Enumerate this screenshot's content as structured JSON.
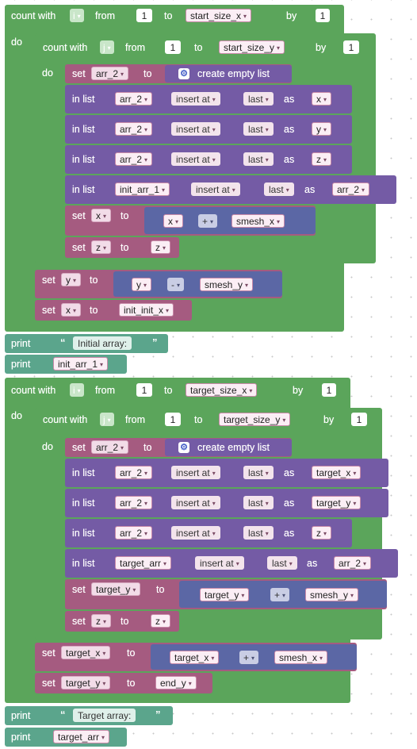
{
  "labels": {
    "count_with": "count with",
    "from": "from",
    "to": "to",
    "by": "by",
    "do": "do",
    "set": "set",
    "in_list": "in list",
    "as": "as",
    "print": "print",
    "create_empty_list": "create empty list",
    "open_quote": "“",
    "close_quote": "”",
    "caret": "▾"
  },
  "loop1": {
    "var": "i",
    "from": "1",
    "to": "start_size_x",
    "by": "1"
  },
  "loop2": {
    "var": "j",
    "from": "1",
    "to": "start_size_y",
    "by": "1"
  },
  "inner1": [
    {
      "kind": "set_empty",
      "var": "arr_2"
    },
    {
      "kind": "insert",
      "list": "arr_2",
      "mode": "insert at",
      "where": "last",
      "value": "x"
    },
    {
      "kind": "insert",
      "list": "arr_2",
      "mode": "insert at",
      "where": "last",
      "value": "y"
    },
    {
      "kind": "insert",
      "list": "arr_2",
      "mode": "insert at",
      "where": "last",
      "value": "z"
    },
    {
      "kind": "insert",
      "list": "init_arr_1",
      "mode": "insert at",
      "where": "last",
      "value": "arr_2"
    },
    {
      "kind": "set_math",
      "var": "x",
      "left": "x",
      "op": "+",
      "right": "smesh_x"
    },
    {
      "kind": "set_var",
      "var": "z",
      "value": "z"
    }
  ],
  "after_loop2": [
    {
      "kind": "set_math",
      "var": "y",
      "left": "y",
      "op": "-",
      "right": "smesh_y"
    },
    {
      "kind": "set_var",
      "var": "x",
      "value": "init_init_x"
    }
  ],
  "print1": "Initial array:",
  "print2": "init_arr_1",
  "loop3": {
    "var": "i",
    "from": "1",
    "to": "target_size_x",
    "by": "1"
  },
  "loop4": {
    "var": "j",
    "from": "1",
    "to": "target_size_y",
    "by": "1"
  },
  "inner2": [
    {
      "kind": "set_empty",
      "var": "arr_2"
    },
    {
      "kind": "insert",
      "list": "arr_2",
      "mode": "insert at",
      "where": "last",
      "value": "target_x"
    },
    {
      "kind": "insert",
      "list": "arr_2",
      "mode": "insert at",
      "where": "last",
      "value": "target_y"
    },
    {
      "kind": "insert",
      "list": "arr_2",
      "mode": "insert at",
      "where": "last",
      "value": "z"
    },
    {
      "kind": "insert",
      "list": "target_arr",
      "mode": "insert at",
      "where": "last",
      "value": "arr_2"
    },
    {
      "kind": "set_math",
      "var": "target_y",
      "left": "target_y",
      "op": "+",
      "right": "smesh_y"
    },
    {
      "kind": "set_var",
      "var": "z",
      "value": "z"
    }
  ],
  "after_loop4": [
    {
      "kind": "set_math",
      "var": "target_x",
      "left": "target_x",
      "op": "+",
      "right": "smesh_x"
    },
    {
      "kind": "set_var",
      "var": "target_y",
      "value": "end_y"
    }
  ],
  "print3": "Target array:",
  "print4": "target_arr",
  "colors": {
    "loop": "#5ba55b",
    "lists": "#745ba5",
    "variables": "#a55b80",
    "text": "#5ba58c",
    "math": "#5b67a5",
    "gear": "#4a63c9"
  }
}
